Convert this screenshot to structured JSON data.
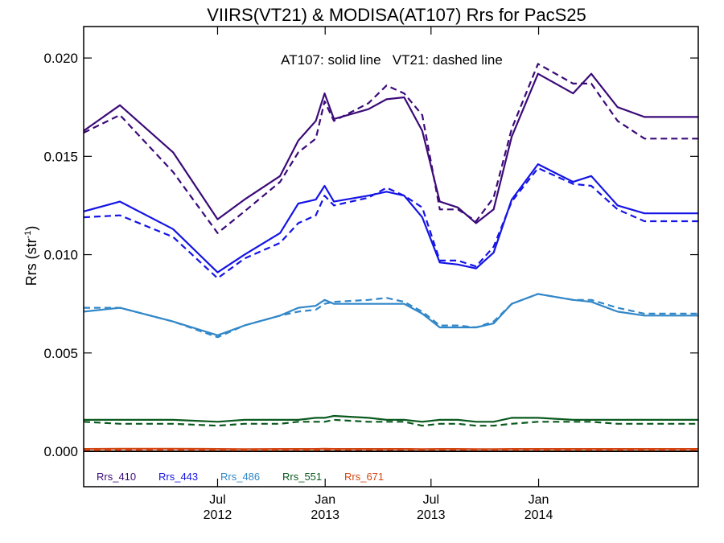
{
  "chart_data": {
    "type": "line",
    "title": "VIIRS(VT21) & MODISA(AT107)  Rrs for PacS25",
    "ylabel_main": "Rrs (str",
    "ylabel_sup": "-1",
    "ylabel_close": ")",
    "annotation": "AT107: solid line   VT21: dashed line",
    "ylim": [
      -0.0018,
      0.0216
    ],
    "yticks": [
      {
        "value": 0.0,
        "label": "0.000"
      },
      {
        "value": 0.005,
        "label": "0.005"
      },
      {
        "value": 0.01,
        "label": "0.010"
      },
      {
        "value": 0.015,
        "label": "0.015"
      },
      {
        "value": 0.02,
        "label": "0.020"
      }
    ],
    "xlim": [
      "2011-11-15",
      "2014-10-01"
    ],
    "xticks": [
      {
        "date": "2012-07-01",
        "line1": "Jul",
        "line2": "2012"
      },
      {
        "date": "2013-01-01",
        "line1": "Jan",
        "line2": "2013"
      },
      {
        "date": "2013-07-01",
        "line1": "Jul",
        "line2": "2013"
      },
      {
        "date": "2014-01-01",
        "line1": "Jan",
        "line2": "2014"
      }
    ],
    "zero_line": true,
    "grid": false,
    "legend_position": "bottom-left",
    "dates": [
      "2011-11-15",
      "2012-01-16",
      "2012-04-16",
      "2012-07-01",
      "2012-08-16",
      "2012-10-16",
      "2012-11-16",
      "2012-12-16",
      "2012-12-31",
      "2013-01-16",
      "2013-03-16",
      "2013-04-16",
      "2013-05-16",
      "2013-06-16",
      "2013-07-16",
      "2013-08-16",
      "2013-09-16",
      "2013-10-16",
      "2013-11-16",
      "2013-12-31",
      "2014-03-01",
      "2014-04-01",
      "2014-05-16",
      "2014-07-01",
      "2014-08-16",
      "2014-10-01"
    ],
    "series": [
      {
        "name": "Rrs_410",
        "color": "#3b0a78",
        "solid": [
          0.0163,
          0.0176,
          0.0152,
          0.0118,
          0.0128,
          0.014,
          0.0158,
          0.0168,
          0.0182,
          0.0169,
          0.0174,
          0.0179,
          0.018,
          0.0163,
          0.0127,
          0.0124,
          0.0116,
          0.0123,
          0.016,
          0.0192,
          0.0182,
          0.0192,
          0.0175,
          0.017,
          0.017,
          0.017
        ],
        "dashed": [
          0.0162,
          0.0171,
          0.0142,
          0.0111,
          0.0122,
          0.0137,
          0.0152,
          0.0159,
          0.0178,
          0.0168,
          0.0177,
          0.0186,
          0.0182,
          0.0171,
          0.0123,
          0.0123,
          0.0117,
          0.0129,
          0.0164,
          0.0197,
          0.0187,
          0.0187,
          0.0168,
          0.0159,
          0.0159,
          0.0159
        ]
      },
      {
        "name": "Rrs_443",
        "color": "#1414e6",
        "solid": [
          0.0122,
          0.0127,
          0.0113,
          0.0091,
          0.01,
          0.0111,
          0.0126,
          0.0128,
          0.0135,
          0.0127,
          0.013,
          0.0132,
          0.013,
          0.0119,
          0.0096,
          0.0095,
          0.0093,
          0.0101,
          0.0128,
          0.0146,
          0.0137,
          0.014,
          0.0125,
          0.0121,
          0.0121,
          0.0121
        ],
        "dashed": [
          0.0119,
          0.012,
          0.0109,
          0.0088,
          0.0098,
          0.0106,
          0.0116,
          0.012,
          0.013,
          0.0125,
          0.0129,
          0.0134,
          0.013,
          0.0124,
          0.0097,
          0.0097,
          0.0094,
          0.0104,
          0.0127,
          0.0144,
          0.0136,
          0.0135,
          0.0123,
          0.0117,
          0.0117,
          0.0117
        ]
      },
      {
        "name": "Rrs_486",
        "color": "#3287c8",
        "solid": [
          0.0071,
          0.0073,
          0.0066,
          0.0059,
          0.0064,
          0.0069,
          0.0073,
          0.0074,
          0.0077,
          0.0075,
          0.0075,
          0.0075,
          0.0075,
          0.007,
          0.0063,
          0.0063,
          0.0063,
          0.0065,
          0.0075,
          0.008,
          0.0077,
          0.0076,
          0.0071,
          0.0069,
          0.0069,
          0.0069
        ],
        "dashed": [
          0.0073,
          0.0073,
          0.0066,
          0.0058,
          0.0064,
          0.0069,
          0.0071,
          0.0072,
          0.0075,
          0.0076,
          0.0077,
          0.0078,
          0.0076,
          0.0071,
          0.0064,
          0.0064,
          0.0063,
          0.0066,
          0.0075,
          0.008,
          0.0077,
          0.0077,
          0.0073,
          0.007,
          0.007,
          0.007
        ]
      },
      {
        "name": "Rrs_551",
        "color": "#0a5a1e",
        "solid": [
          0.0016,
          0.0016,
          0.0016,
          0.0015,
          0.0016,
          0.0016,
          0.0016,
          0.0017,
          0.0017,
          0.0018,
          0.0017,
          0.0016,
          0.0016,
          0.0015,
          0.0016,
          0.0016,
          0.0015,
          0.0015,
          0.0017,
          0.0017,
          0.0016,
          0.0016,
          0.0016,
          0.0016,
          0.0016,
          0.0016
        ],
        "dashed": [
          0.0015,
          0.0014,
          0.0014,
          0.0013,
          0.0014,
          0.0014,
          0.0015,
          0.0015,
          0.0015,
          0.0016,
          0.0015,
          0.0015,
          0.0015,
          0.0013,
          0.0014,
          0.0014,
          0.0013,
          0.0013,
          0.0014,
          0.0015,
          0.0015,
          0.0015,
          0.0014,
          0.0014,
          0.0014,
          0.0014
        ]
      },
      {
        "name": "Rrs_671",
        "color": "#d24614",
        "solid": [
          0.00012,
          0.00013,
          0.00013,
          0.00012,
          0.00011,
          0.00012,
          0.00012,
          0.00012,
          0.00013,
          0.00012,
          0.00012,
          0.00012,
          0.00012,
          0.00011,
          0.00012,
          0.00012,
          0.00011,
          0.00011,
          0.00012,
          0.00012,
          0.00012,
          0.00012,
          0.00012,
          0.00012,
          0.00012,
          0.00012
        ],
        "dashed": [
          6e-05,
          7e-05,
          7e-05,
          7e-05,
          6e-05,
          7e-05,
          7e-05,
          7e-05,
          8e-05,
          8e-05,
          8e-05,
          8e-05,
          8e-05,
          7e-05,
          8e-05,
          8e-05,
          7e-05,
          7e-05,
          7e-05,
          7e-05,
          7e-05,
          7e-05,
          7e-05,
          7e-05,
          7e-05,
          7e-05
        ]
      }
    ]
  }
}
